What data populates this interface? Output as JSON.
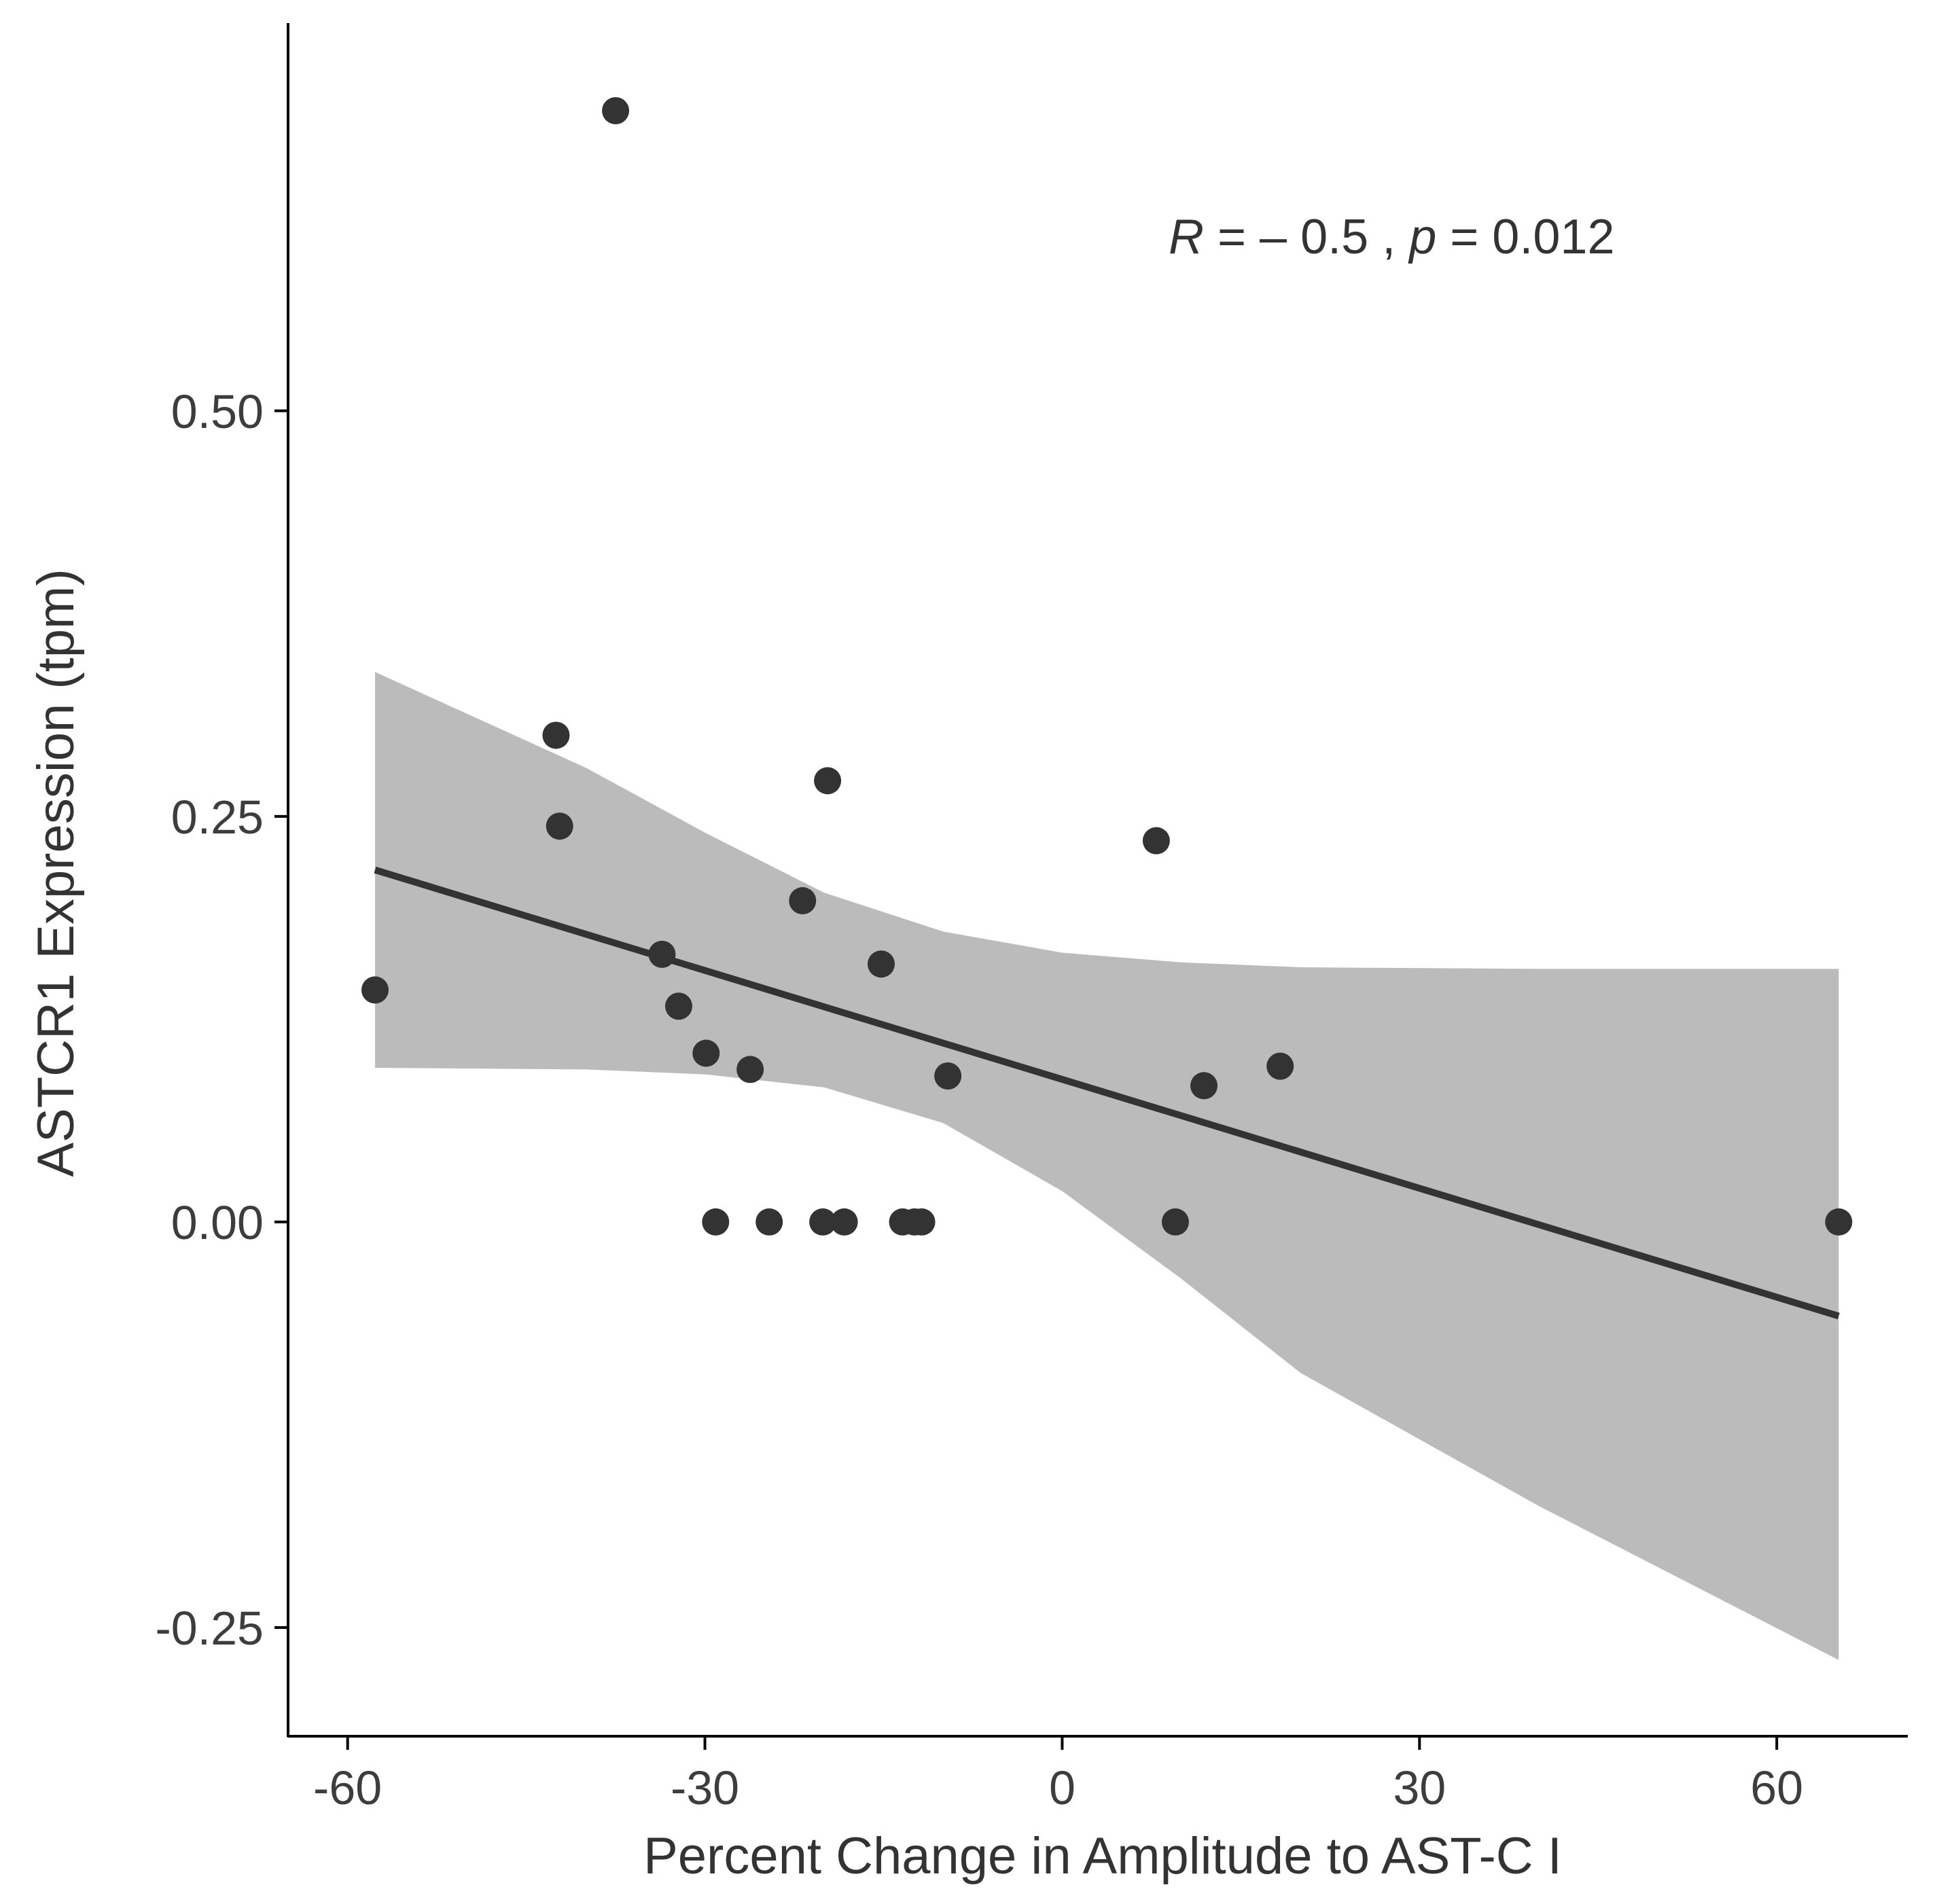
{
  "chart_data": {
    "type": "scatter",
    "title": "",
    "xlabel": "Percent Change in Amplitude to AST-C I",
    "ylabel": "ASTCR1 Expression (tpm)",
    "xlim": [
      -65,
      71
    ],
    "ylim": [
      -0.317,
      0.739
    ],
    "x_ticks": [
      -60,
      -30,
      0,
      30,
      60
    ],
    "x_tick_labels": [
      "-60",
      "-30",
      "0",
      "30",
      "60"
    ],
    "y_ticks": [
      -0.25,
      0.0,
      0.25,
      0.5
    ],
    "y_tick_labels": [
      "-0.25",
      "0.00",
      "0.25",
      "0.50"
    ],
    "grid": false,
    "annotation": {
      "r_symbol": "R",
      "r_value": " = – 0.5 , ",
      "p_symbol": "p",
      "p_value": " = 0.012"
    },
    "points": [
      {
        "x": -57.7,
        "y": 0.143
      },
      {
        "x": -42.5,
        "y": 0.3
      },
      {
        "x": -42.2,
        "y": 0.244
      },
      {
        "x": -37.5,
        "y": 0.685
      },
      {
        "x": -33.6,
        "y": 0.165
      },
      {
        "x": -32.2,
        "y": 0.133
      },
      {
        "x": -29.9,
        "y": 0.104
      },
      {
        "x": -29.1,
        "y": 0.0
      },
      {
        "x": -26.2,
        "y": 0.094
      },
      {
        "x": -24.6,
        "y": 0.0
      },
      {
        "x": -21.8,
        "y": 0.198
      },
      {
        "x": -20.1,
        "y": 0.0
      },
      {
        "x": -19.7,
        "y": 0.272
      },
      {
        "x": -18.3,
        "y": 0.0
      },
      {
        "x": -15.2,
        "y": 0.159
      },
      {
        "x": -13.4,
        "y": 0.0
      },
      {
        "x": -12.4,
        "y": 0.0
      },
      {
        "x": -11.8,
        "y": 0.0
      },
      {
        "x": -9.6,
        "y": 0.09
      },
      {
        "x": 7.9,
        "y": 0.235
      },
      {
        "x": 9.5,
        "y": 0.0
      },
      {
        "x": 11.9,
        "y": 0.084
      },
      {
        "x": 18.3,
        "y": 0.096
      },
      {
        "x": 65.2,
        "y": 0.0
      }
    ],
    "fit_line": {
      "x": [
        -57.7,
        65.2
      ],
      "y": [
        0.217,
        -0.058
      ]
    },
    "confidence_band": {
      "x": [
        -57.7,
        -40,
        -30,
        -20,
        -10,
        0,
        10,
        20,
        40,
        65.2
      ],
      "upper": [
        0.339,
        0.28,
        0.24,
        0.203,
        0.179,
        0.166,
        0.16,
        0.157,
        0.156,
        0.156
      ],
      "lower": [
        0.095,
        0.094,
        0.091,
        0.083,
        0.061,
        0.019,
        -0.035,
        -0.093,
        -0.175,
        -0.27
      ]
    },
    "colors": {
      "point": "#333333",
      "line": "#333333",
      "band": "#bbbbbb",
      "axis": "#000000",
      "text": "#333333"
    }
  }
}
